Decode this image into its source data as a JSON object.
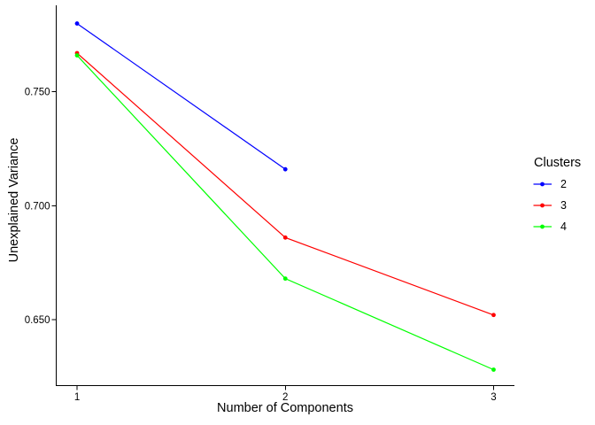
{
  "figure": {
    "background": "#FFFFFF"
  },
  "chart_data": {
    "type": "line",
    "xlabel": "Number of Components",
    "ylabel": "Unexplained Variance",
    "legend_title": "Clusters",
    "legend_position": "right",
    "grid": false,
    "background": "#FFFFFF",
    "axis_color": "#000000",
    "text_color": "#000000",
    "xticks": [
      1,
      2,
      3
    ],
    "xtick_labels": [
      "1",
      "2",
      "3"
    ],
    "yticks": [
      0.65,
      0.7,
      0.75
    ],
    "ytick_labels": [
      "0.650",
      "0.700",
      "0.750"
    ],
    "xlim": [
      0.9,
      3.1
    ],
    "ylim": [
      0.621,
      0.788
    ],
    "series": [
      {
        "name": "2",
        "color": "#0000FF",
        "x": [
          1,
          2
        ],
        "values": [
          0.78,
          0.716
        ]
      },
      {
        "name": "3",
        "color": "#FF0000",
        "x": [
          1,
          2,
          3
        ],
        "values": [
          0.767,
          0.686,
          0.652
        ]
      },
      {
        "name": "4",
        "color": "#00FF00",
        "x": [
          1,
          2,
          3
        ],
        "values": [
          0.766,
          0.668,
          0.628
        ]
      }
    ]
  }
}
